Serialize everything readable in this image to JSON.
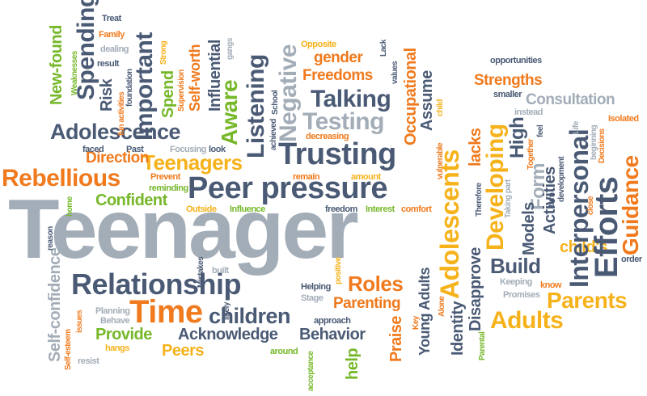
{
  "colors": {
    "grey": "#a3adb8",
    "navy": "#4a5a75",
    "green": "#76b82a",
    "orange": "#f07a1d",
    "yellow": "#f6b21a"
  },
  "words": {
    "teenager": "Teenager",
    "peer_pressure": "Peer pressure",
    "relationship": "Relationship",
    "trusting": "Trusting",
    "adolescence": "Adolescence",
    "talking": "Talking",
    "testing": "Testing",
    "teenagers": "Teenagers",
    "rebellious": "Rebellious",
    "time": "Time",
    "children": "children",
    "parents": "Parents",
    "adults": "Adults",
    "build": "Build",
    "roles": "Roles",
    "acknowledge": "Acknowledge",
    "behavior": "Behavior",
    "provide": "Provide",
    "confident": "Confident",
    "direction": "Direction",
    "strengths": "Strengths",
    "consultation": "Consultation",
    "freedoms": "Freedoms",
    "gender": "gender",
    "parenting": "Parenting",
    "peers": "Peers",
    "childs": "child's",
    "spending": "Spending",
    "important": "Important",
    "negative": "Negative",
    "listening": "Listening",
    "aware": "Aware",
    "risk": "Risk",
    "new_found": "New-found",
    "spend": "Spend",
    "influential": "Influential",
    "self_worth": "Self-worth",
    "occupational": "Occupational",
    "assume": "Assume",
    "adolescents": "Adolescents",
    "lacks": "lacks",
    "developing": "Developing",
    "high": "High",
    "form": "Form",
    "activities": "Activities",
    "models": "Models",
    "interpersonal": "Interpersonal",
    "efforts": "Efforts",
    "guidance": "Guidance",
    "self_confidence": "Self-confidence",
    "praise": "Praise",
    "young_adults": "Young Adults",
    "identity": "Identity",
    "disapprove": "Disapprove",
    "help": "help",
    "treat": "Treat",
    "family": "Family",
    "dealing": "dealing",
    "result": "result",
    "weaknesses": "Weaknesses",
    "fun_activities": "fun activities",
    "foundation": "foundation",
    "supervision": "Supervision",
    "strong": "Strong",
    "gangs": "gangs",
    "school": "School",
    "achieved": "achieved",
    "opposite": "Opposite",
    "lack": "Lack",
    "values": "values",
    "opportunities": "opportunities",
    "smaller": "smaller",
    "instead": "instead",
    "decreasing": "decreasing",
    "child": "child",
    "vulnerable": "vulnerable",
    "faced": "faced",
    "past": "Past",
    "focusing": "Focusing",
    "look": "look",
    "prevent": "Prevent",
    "reminding": "reminding",
    "remain": "remain",
    "amount": "amount",
    "outside": "Outside",
    "influence": "Influence",
    "freedom": "freedom",
    "interest": "Interest",
    "comfort": "comfort",
    "therefore": "Therefore",
    "taking_part": "Taking part",
    "together": "Together",
    "feel": "feel",
    "turn": "turn",
    "development": "development",
    "life": "Life",
    "beginning": "beginning",
    "decisions": "Decisions",
    "isolated": "Isolated",
    "close": "close",
    "order": "order",
    "home": "home",
    "reason": "reason",
    "mistakes": "Mistakes",
    "built": "built",
    "positive": "positive",
    "helping": "Helping",
    "stage": "Stage",
    "keeping": "Keeping",
    "know": "know",
    "promises": "Promises",
    "alone": "Alone",
    "parental": "Parental",
    "key": "Key",
    "issues": "issues",
    "planning": "Planning",
    "behave": "Behave",
    "likely": "likely",
    "approach": "approach",
    "self_esteem": "Self-esteem",
    "hangs": "hangs",
    "resist": "resist",
    "around": "around",
    "acceptance": "acceptance"
  }
}
